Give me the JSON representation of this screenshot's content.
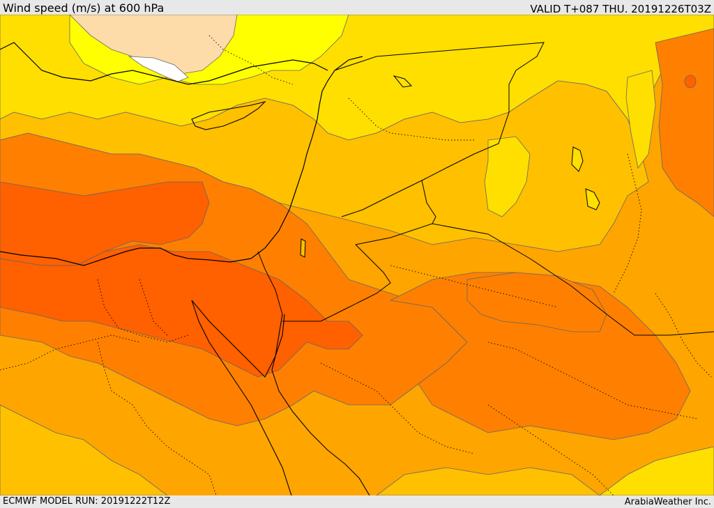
{
  "header": {
    "title": "Wind speed (m/s) at 600 hPa",
    "valid": "VALID T+087 THU. 20191226T03Z"
  },
  "footer": {
    "model_run": "ECMWF MODEL RUN: 20191222T12Z",
    "credit": "ArabiaWeather Inc."
  },
  "map": {
    "colors": {
      "white": "#ffffff",
      "peach": "#fddcaa",
      "bright_yellow": "#ffff00",
      "yellow": "#ffdf00",
      "amber": "#ffc000",
      "orange_light": "#ffa500",
      "orange": "#ff8000",
      "red_orange": "#ff6000",
      "contour": "#666666",
      "coast": "#000000"
    }
  }
}
